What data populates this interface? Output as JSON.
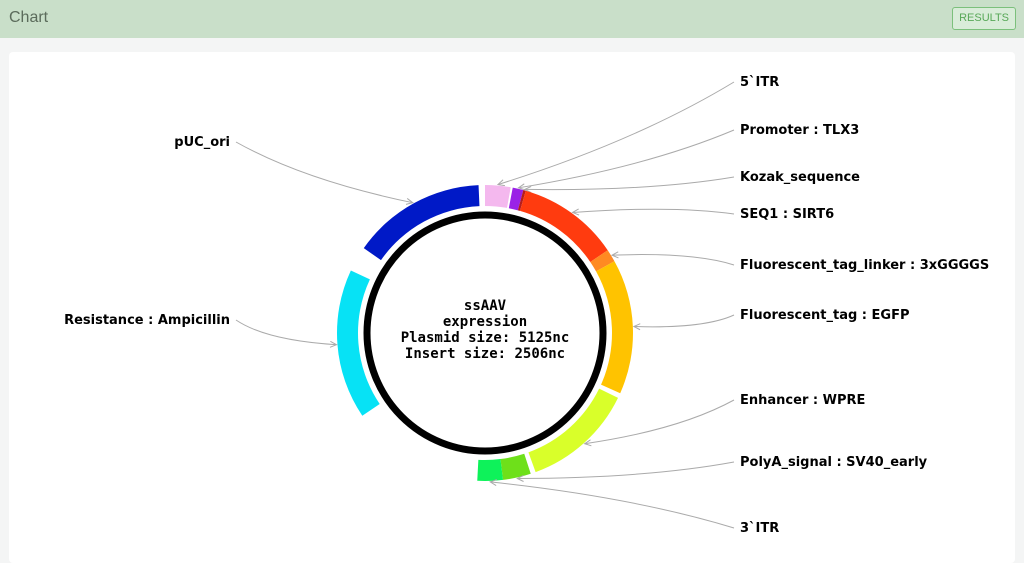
{
  "header": {
    "title": "Chart",
    "results_label": "RESULTS"
  },
  "plasmid": {
    "center_lines": [
      "ssAAV",
      "expression",
      "Plasmid size: 5125nc",
      "Insert size: 2506nc"
    ],
    "features": [
      {
        "label": "5`ITR",
        "color": "#f4b8ee",
        "start_deg": 0,
        "end_deg": 10
      },
      {
        "label": "Promoter : TLX3",
        "color": "#9a22e6",
        "start_deg": 10.8,
        "end_deg": 15
      },
      {
        "label": "Kozak_sequence",
        "color": "#b71c1c",
        "start_deg": 15,
        "end_deg": 16
      },
      {
        "label": "SEQ1 : SIRT6",
        "color": "#ff3b0f",
        "start_deg": 16,
        "end_deg": 56
      },
      {
        "label": "Fluorescent_tag_linker : 3xGGGGS",
        "color": "#ff8a22",
        "start_deg": 56,
        "end_deg": 61
      },
      {
        "label": "Fluorescent_tag : EGFP",
        "color": "#ffc300",
        "start_deg": 61,
        "end_deg": 114
      },
      {
        "label": "Enhancer : WPRE",
        "color": "#d9ff2a",
        "start_deg": 116,
        "end_deg": 160
      },
      {
        "label": "PolyA_signal : SV40_early",
        "color": "#6ee01a",
        "start_deg": 162,
        "end_deg": 173
      },
      {
        "label": "3`ITR",
        "color": "#0ef25a",
        "start_deg": 173,
        "end_deg": 183
      },
      {
        "label": "Resistance : Ampicillin",
        "color": "#07e2f5",
        "start_deg": 236,
        "end_deg": 295
      },
      {
        "label": "pUC_ori",
        "color": "#0019c7",
        "start_deg": 305,
        "end_deg": 357.5
      }
    ]
  }
}
